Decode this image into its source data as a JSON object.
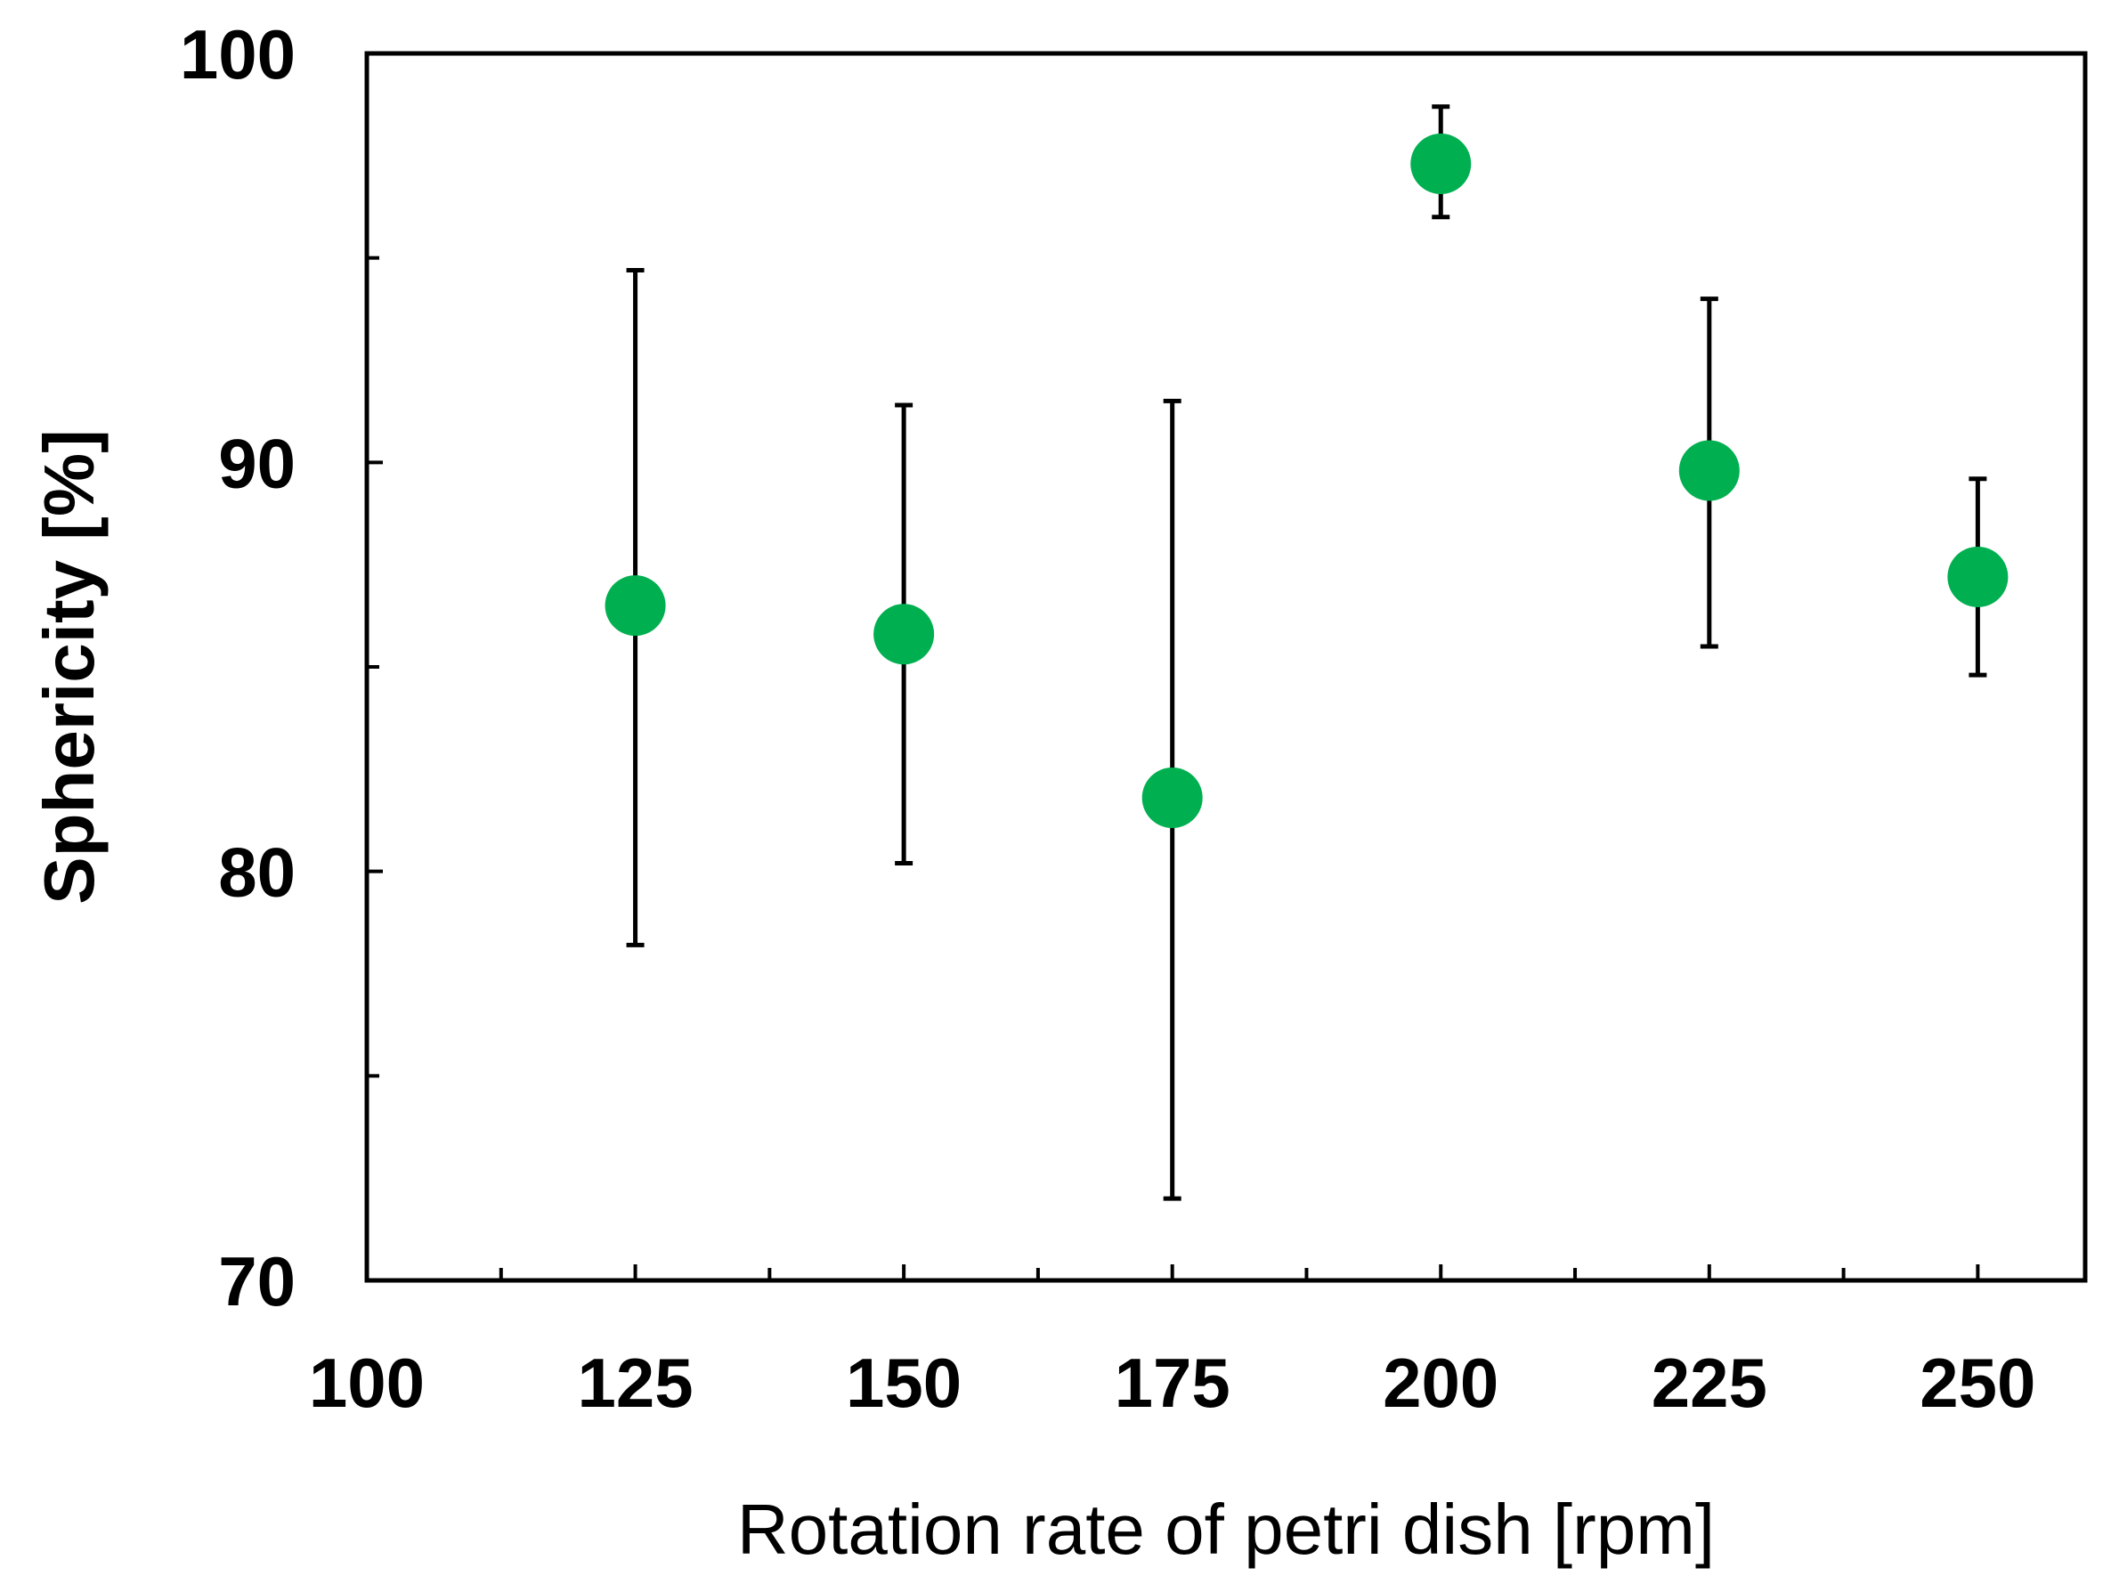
{
  "chart_data": {
    "type": "scatter",
    "title": "",
    "xlabel": "Rotation rate of petri dish [rpm]",
    "ylabel": "Sphericity [%]",
    "xlim": [
      100,
      260
    ],
    "ylim": [
      70,
      100
    ],
    "x_ticks": [
      100,
      125,
      150,
      175,
      200,
      225,
      250
    ],
    "x_minor_ticks": [
      112.5,
      137.5,
      162.5,
      187.5,
      212.5,
      237.5
    ],
    "y_ticks": [
      70,
      80,
      90,
      100
    ],
    "y_minor_ticks": [
      75,
      85,
      95
    ],
    "grid": false,
    "series": [
      {
        "name": "Sphericity",
        "color": "#00b050",
        "x": [
          125,
          150,
          175,
          200,
          225,
          250
        ],
        "y": [
          86.5,
          85.8,
          81.8,
          97.3,
          89.8,
          87.2
        ],
        "err_low": [
          78.2,
          80.2,
          72.0,
          96.0,
          85.5,
          84.8
        ],
        "err_high": [
          94.7,
          91.4,
          91.5,
          98.7,
          94.0,
          89.6
        ]
      }
    ]
  }
}
